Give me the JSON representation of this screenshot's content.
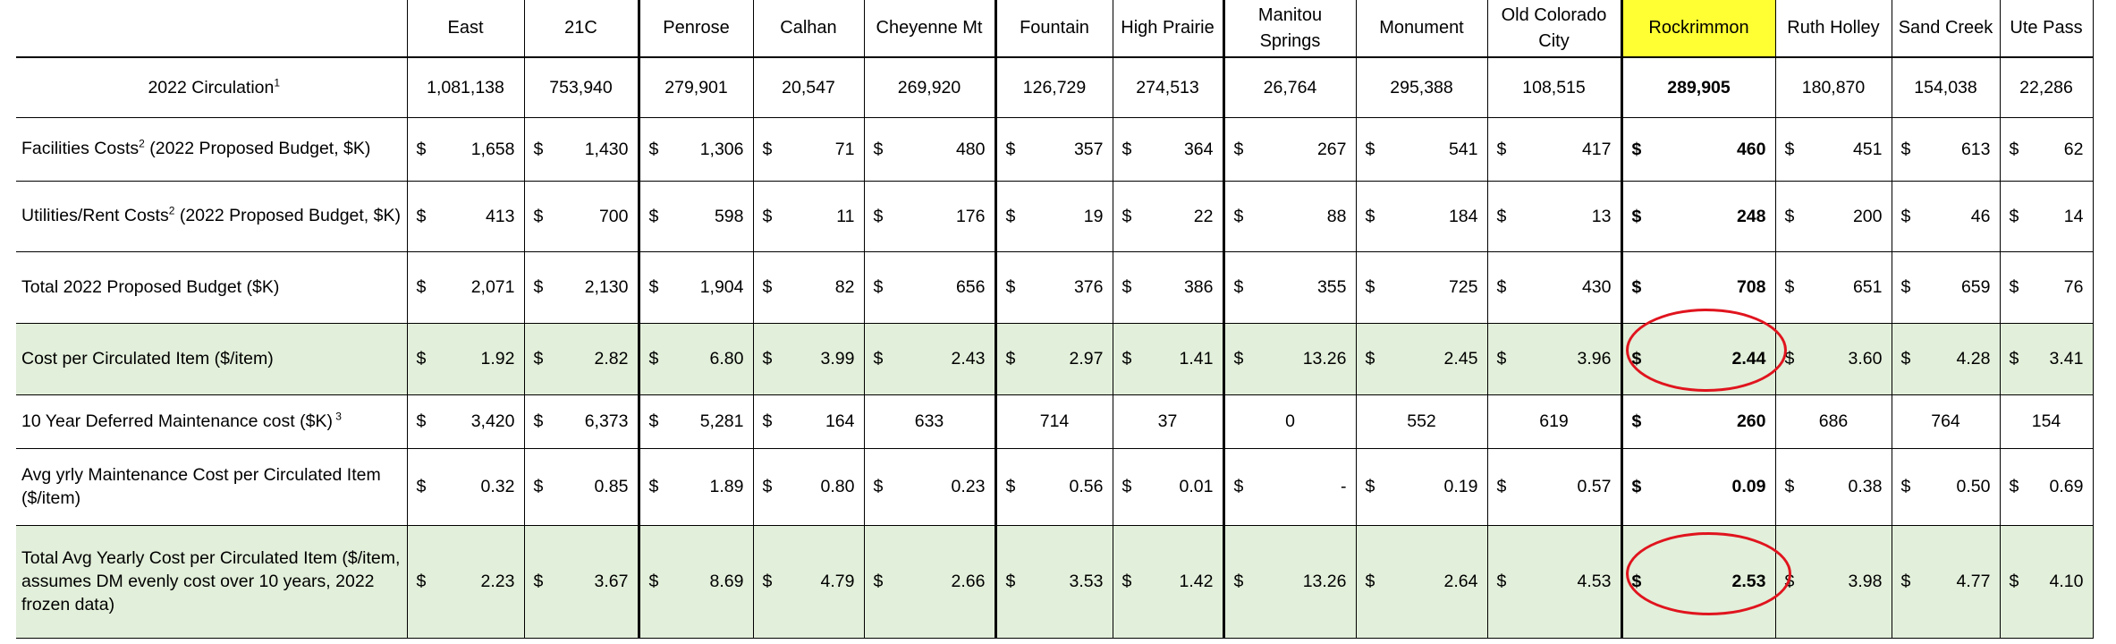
{
  "table": {
    "branches": [
      "East",
      "21C",
      "Penrose",
      "Calhan",
      "Cheyenne Mt",
      "Fountain",
      "High Prairie",
      "Manitou Springs",
      "Monument",
      "Old Colorado City",
      "Rockrimmon",
      "Ruth Holley",
      "Sand Creek",
      "Ute Pass"
    ],
    "highlighted_branch": "Rockrimmon",
    "highlight_color": "#ffff33",
    "row_fill_color": "#e2efda",
    "annotation_color": "#e0141e",
    "rows": [
      {
        "label": "2022 Circulation",
        "sup": "1",
        "note": "",
        "values": [
          "1,081,138",
          "753,940",
          "279,901",
          "20,547",
          "269,920",
          "126,729",
          "274,513",
          "26,764",
          "295,388",
          "108,515",
          "289,905",
          "180,870",
          "154,038",
          "22,286"
        ]
      },
      {
        "label": "Facilities Costs",
        "sup": "2",
        "note": " (2022 Proposed Budget, $K)",
        "values": [
          "1,658",
          "1,430",
          "1,306",
          "71",
          "480",
          "357",
          "364",
          "267",
          "541",
          "417",
          "460",
          "451",
          "613",
          "62"
        ]
      },
      {
        "label": "Utilities/Rent Costs",
        "sup": "2",
        "note": " (2022 Proposed Budget, $K)",
        "values": [
          "413",
          "700",
          "598",
          "11",
          "176",
          "19",
          "22",
          "88",
          "184",
          "13",
          "248",
          "200",
          "46",
          "14"
        ]
      },
      {
        "label": "Total 2022 Proposed Budget ($K)",
        "sup": "",
        "note": "",
        "values": [
          "2,071",
          "2,130",
          "1,904",
          "82",
          "656",
          "376",
          "386",
          "355",
          "725",
          "430",
          "708",
          "651",
          "659",
          "76"
        ]
      },
      {
        "label": "Cost per Circulated Item  ($/item)",
        "sup": "",
        "note": "",
        "values": [
          "1.92",
          "2.82",
          "6.80",
          "3.99",
          "2.43",
          "2.97",
          "1.41",
          "13.26",
          "2.45",
          "3.96",
          "2.44",
          "3.60",
          "4.28",
          "3.41"
        ]
      },
      {
        "label": "10 Year Deferred Maintenance cost ($K)",
        "sup": " 3",
        "note": "",
        "values": [
          "3,420",
          "6,373",
          "5,281",
          "164",
          "633",
          "714",
          "37",
          "0",
          "552",
          "619",
          "260",
          "686",
          "764",
          "154"
        ]
      },
      {
        "label": "Avg yrly Maintenance Cost per Circulated Item ($/item)",
        "sup": "",
        "note": "",
        "values": [
          "0.32",
          "0.85",
          "1.89",
          "0.80",
          "0.23",
          "0.56",
          "0.01",
          "-",
          "0.19",
          "0.57",
          "0.09",
          "0.38",
          "0.50",
          "0.69"
        ]
      },
      {
        "label": "Total Avg Yearly Cost per Circulated Item ($/item, assumes DM evenly cost over 10 years, 2022 frozen data)",
        "sup": "",
        "note": "",
        "values": [
          "2.23",
          "3.67",
          "8.69",
          "4.79",
          "2.66",
          "3.53",
          "1.42",
          "13.26",
          "2.64",
          "4.53",
          "2.53",
          "3.98",
          "4.77",
          "4.10"
        ]
      }
    ],
    "currency_symbol": "$"
  }
}
